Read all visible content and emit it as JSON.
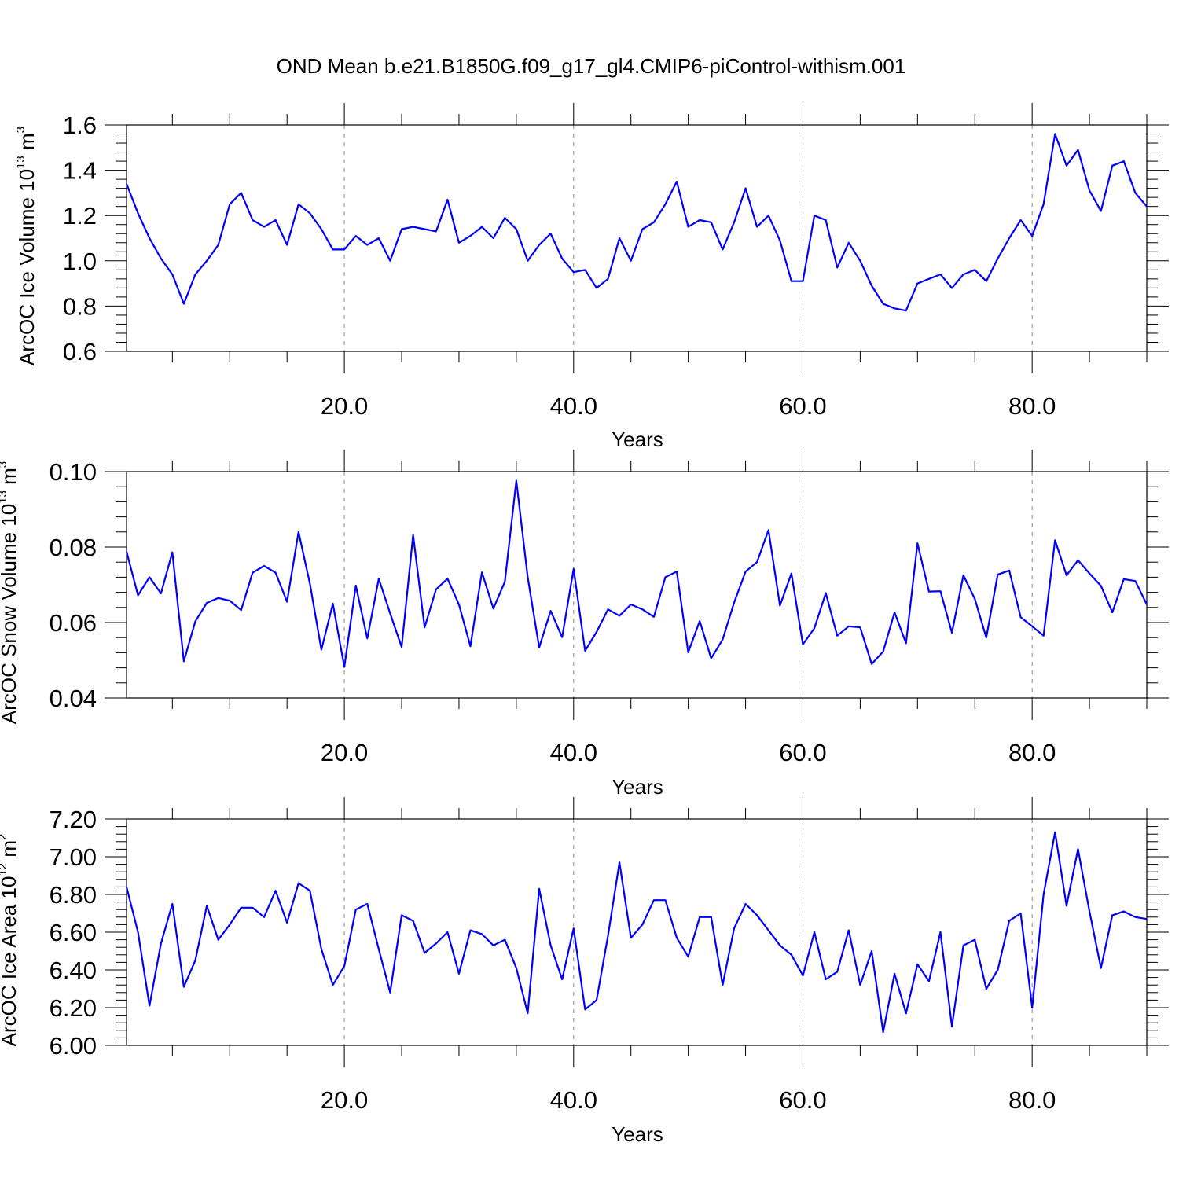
{
  "title": "OND Mean b.e21.B1850G.f09_g17_gl4.CMIP6-piControl-withism.001",
  "line_color": "#0000ff",
  "chart_data": [
    {
      "type": "line",
      "ylabel": "ArcOC Ice Volume 10",
      "ylabel_exp": "13",
      "ylabel_unit": " m",
      "ylabel_unit_exp": "3",
      "xlabel": "Years",
      "xlim": [
        1,
        90
      ],
      "ylim": [
        0.6,
        1.6
      ],
      "xticks": [
        20,
        40,
        60,
        80
      ],
      "xtick_labels": [
        "20.0",
        "40.0",
        "60.0",
        "80.0"
      ],
      "yticks": [
        0.6,
        0.8,
        1.0,
        1.2,
        1.4,
        1.6
      ],
      "ytick_labels": [
        "0.6",
        "0.8",
        "1.0",
        "1.2",
        "1.4",
        "1.6"
      ],
      "x_start": 1,
      "values": [
        1.34,
        1.21,
        1.1,
        1.01,
        0.94,
        0.81,
        0.94,
        1.0,
        1.07,
        1.25,
        1.3,
        1.18,
        1.15,
        1.18,
        1.07,
        1.25,
        1.21,
        1.14,
        1.05,
        1.05,
        1.11,
        1.07,
        1.1,
        1.0,
        1.14,
        1.15,
        1.14,
        1.13,
        1.27,
        1.08,
        1.11,
        1.15,
        1.1,
        1.19,
        1.14,
        1.0,
        1.07,
        1.12,
        1.01,
        0.95,
        0.96,
        0.88,
        0.92,
        1.1,
        1.0,
        1.14,
        1.17,
        1.25,
        1.35,
        1.15,
        1.18,
        1.17,
        1.05,
        1.17,
        1.32,
        1.15,
        1.2,
        1.09,
        0.91,
        0.91,
        1.2,
        1.18,
        0.97,
        1.08,
        1.0,
        0.89,
        0.81,
        0.79,
        0.78,
        0.9,
        0.92,
        0.94,
        0.88,
        0.94,
        0.96,
        0.91,
        1.01,
        1.1,
        1.18,
        1.11,
        1.25,
        1.56,
        1.42,
        1.49,
        1.31,
        1.22,
        1.42,
        1.44,
        1.3,
        1.24
      ]
    },
    {
      "type": "line",
      "ylabel": "ArcOC Snow Volume 10",
      "ylabel_exp": "13",
      "ylabel_unit": " m",
      "ylabel_unit_exp": "3",
      "xlabel": "Years",
      "xlim": [
        1,
        90
      ],
      "ylim": [
        0.04,
        0.1
      ],
      "xticks": [
        20,
        40,
        60,
        80
      ],
      "xtick_labels": [
        "20.0",
        "40.0",
        "60.0",
        "80.0"
      ],
      "yticks": [
        0.04,
        0.06,
        0.08,
        0.1
      ],
      "ytick_labels": [
        "0.04",
        "0.06",
        "0.08",
        "0.10"
      ],
      "x_start": 1,
      "values": [
        0.0788,
        0.0672,
        0.072,
        0.0677,
        0.0786,
        0.0497,
        0.0603,
        0.0652,
        0.0665,
        0.0658,
        0.0633,
        0.0732,
        0.075,
        0.0732,
        0.0655,
        0.084,
        0.0703,
        0.0528,
        0.065,
        0.0482,
        0.0698,
        0.0558,
        0.0716,
        0.0624,
        0.0535,
        0.0832,
        0.0587,
        0.0688,
        0.0716,
        0.0648,
        0.0537,
        0.0733,
        0.0637,
        0.0708,
        0.0976,
        0.072,
        0.0534,
        0.0631,
        0.0561,
        0.0742,
        0.0525,
        0.0575,
        0.0635,
        0.0618,
        0.0648,
        0.0635,
        0.0615,
        0.072,
        0.0735,
        0.0521,
        0.0604,
        0.0505,
        0.0555,
        0.0653,
        0.0735,
        0.076,
        0.0845,
        0.0645,
        0.073,
        0.0542,
        0.0585,
        0.0678,
        0.0565,
        0.059,
        0.0587,
        0.049,
        0.0523,
        0.0627,
        0.0545,
        0.081,
        0.0682,
        0.0683,
        0.0573,
        0.0725,
        0.0663,
        0.056,
        0.0727,
        0.0738,
        0.0614,
        0.059,
        0.0565,
        0.0818,
        0.0725,
        0.0765,
        0.073,
        0.0697,
        0.0627,
        0.0715,
        0.071,
        0.0648
      ]
    },
    {
      "type": "line",
      "ylabel": "ArcOC Ice Area 10",
      "ylabel_exp": "12",
      "ylabel_unit": " m",
      "ylabel_unit_exp": "2",
      "xlabel": "Years",
      "xlim": [
        1,
        90
      ],
      "ylim": [
        6.0,
        7.2
      ],
      "xticks": [
        20,
        40,
        60,
        80
      ],
      "xtick_labels": [
        "20.0",
        "40.0",
        "60.0",
        "80.0"
      ],
      "yticks": [
        6.0,
        6.2,
        6.4,
        6.6,
        6.8,
        7.0,
        7.2
      ],
      "ytick_labels": [
        "6.00",
        "6.20",
        "6.40",
        "6.60",
        "6.80",
        "7.00",
        "7.20"
      ],
      "x_start": 1,
      "values": [
        6.84,
        6.6,
        6.21,
        6.54,
        6.75,
        6.31,
        6.45,
        6.74,
        6.56,
        6.64,
        6.73,
        6.73,
        6.68,
        6.82,
        6.65,
        6.86,
        6.82,
        6.51,
        6.32,
        6.42,
        6.72,
        6.75,
        6.51,
        6.28,
        6.69,
        6.66,
        6.49,
        6.54,
        6.6,
        6.38,
        6.61,
        6.59,
        6.53,
        6.56,
        6.41,
        6.17,
        6.83,
        6.53,
        6.35,
        6.62,
        6.19,
        6.24,
        6.58,
        6.97,
        6.57,
        6.64,
        6.77,
        6.77,
        6.57,
        6.47,
        6.68,
        6.68,
        6.32,
        6.62,
        6.75,
        6.69,
        6.61,
        6.53,
        6.48,
        6.37,
        6.6,
        6.35,
        6.39,
        6.61,
        6.32,
        6.5,
        6.07,
        6.38,
        6.17,
        6.43,
        6.34,
        6.6,
        6.1,
        6.53,
        6.56,
        6.3,
        6.4,
        6.66,
        6.7,
        6.2,
        6.8,
        7.13,
        6.74,
        7.04,
        6.71,
        6.41,
        6.69,
        6.71,
        6.68,
        6.67
      ]
    }
  ]
}
